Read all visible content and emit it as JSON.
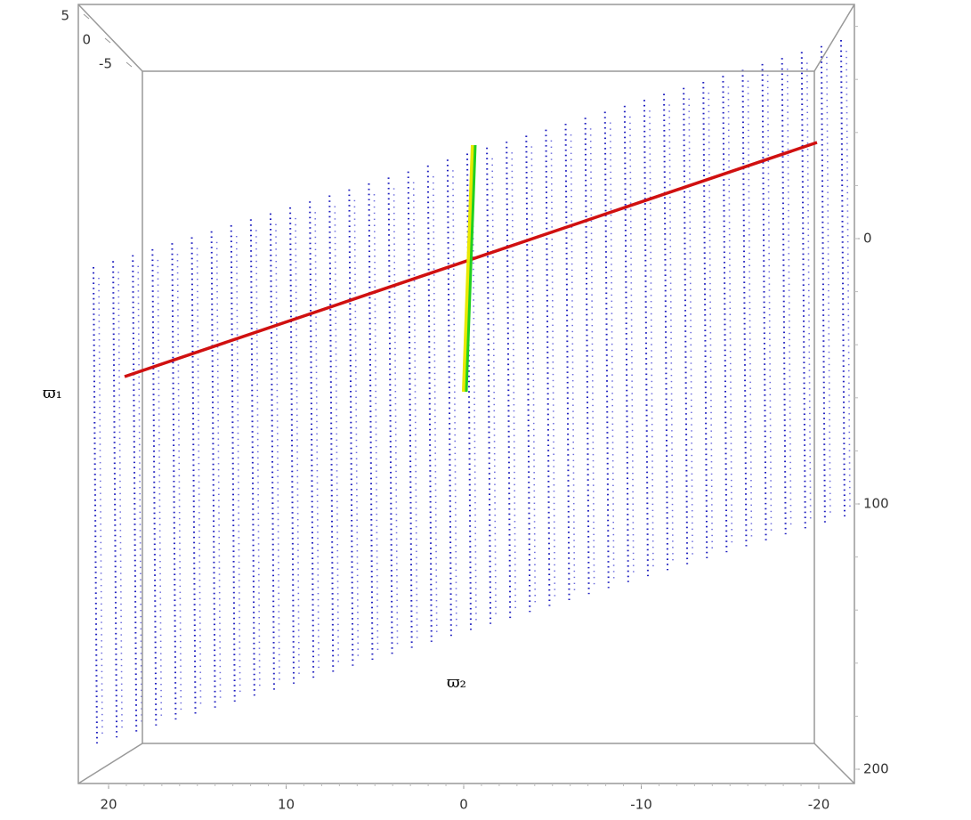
{
  "axes": {
    "x_label": "ϖ₂",
    "y_label": "ϖ₁",
    "bottom_ticks": [
      "20",
      "10",
      "0",
      "-10",
      "-20"
    ],
    "right_ticks": [
      "0",
      "100",
      "200"
    ],
    "corner_ticks": [
      "5",
      "0",
      "-5"
    ]
  }
}
